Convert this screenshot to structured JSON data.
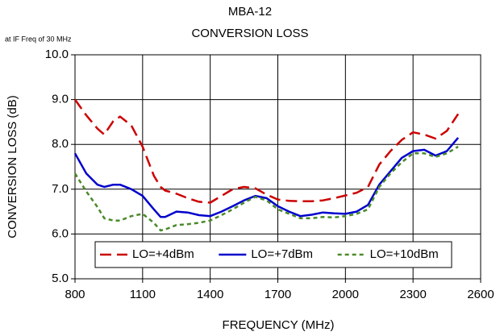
{
  "chart_data": {
    "type": "line",
    "title": "MBA-12",
    "subtitle": "CONVERSION LOSS",
    "annotation": "at IF Freq of 30 MHz",
    "x_label": "FREQUENCY (MHz)",
    "y_label": "CONVERSION LOSS (dB)",
    "x": [
      800,
      850,
      900,
      930,
      970,
      1000,
      1050,
      1100,
      1150,
      1180,
      1200,
      1250,
      1300,
      1350,
      1400,
      1450,
      1500,
      1550,
      1600,
      1650,
      1700,
      1750,
      1800,
      1850,
      1900,
      1950,
      2000,
      2050,
      2100,
      2150,
      2200,
      2250,
      2300,
      2350,
      2400,
      2450,
      2500
    ],
    "series": [
      {
        "name": "LO=+4dBm",
        "color": "#cc0000",
        "dash": "14 7",
        "values": [
          9.0,
          8.65,
          8.35,
          8.22,
          8.52,
          8.62,
          8.42,
          7.95,
          7.3,
          7.05,
          6.97,
          6.9,
          6.8,
          6.72,
          6.7,
          6.85,
          7.0,
          7.05,
          7.02,
          6.88,
          6.77,
          6.74,
          6.73,
          6.73,
          6.75,
          6.8,
          6.86,
          6.92,
          7.05,
          7.55,
          7.85,
          8.1,
          8.27,
          8.22,
          8.13,
          8.3,
          8.68
        ]
      },
      {
        "name": "LO=+7dBm",
        "color": "#0000cc",
        "dash": "none",
        "values": [
          7.8,
          7.35,
          7.1,
          7.05,
          7.1,
          7.1,
          7.0,
          6.85,
          6.55,
          6.38,
          6.38,
          6.5,
          6.48,
          6.42,
          6.4,
          6.5,
          6.62,
          6.75,
          6.85,
          6.8,
          6.62,
          6.5,
          6.4,
          6.43,
          6.48,
          6.46,
          6.45,
          6.5,
          6.65,
          7.1,
          7.4,
          7.7,
          7.85,
          7.88,
          7.75,
          7.85,
          8.15
        ]
      },
      {
        "name": "LO=+10dBm",
        "color": "#4a8a2a",
        "dash": "5 4",
        "values": [
          7.35,
          6.95,
          6.6,
          6.35,
          6.3,
          6.3,
          6.4,
          6.45,
          6.25,
          6.08,
          6.1,
          6.2,
          6.22,
          6.25,
          6.3,
          6.42,
          6.55,
          6.7,
          6.83,
          6.75,
          6.55,
          6.45,
          6.35,
          6.35,
          6.38,
          6.37,
          6.4,
          6.45,
          6.55,
          7.05,
          7.35,
          7.6,
          7.8,
          7.8,
          7.72,
          7.8,
          7.95
        ]
      }
    ],
    "xlim": [
      800,
      2600
    ],
    "xticks": [
      800,
      1100,
      1400,
      1700,
      2000,
      2300,
      2600
    ],
    "ylim": [
      5,
      10
    ],
    "yticks": [
      {
        "value": 5,
        "label": "5.0"
      },
      {
        "value": 6,
        "label": "6.0"
      },
      {
        "value": 7,
        "label": "7.0"
      },
      {
        "value": 8,
        "label": "8.0"
      },
      {
        "value": 9,
        "label": "9.0"
      },
      {
        "value": 10,
        "label": "10.0"
      }
    ],
    "grid": true,
    "legend": "lower center"
  }
}
